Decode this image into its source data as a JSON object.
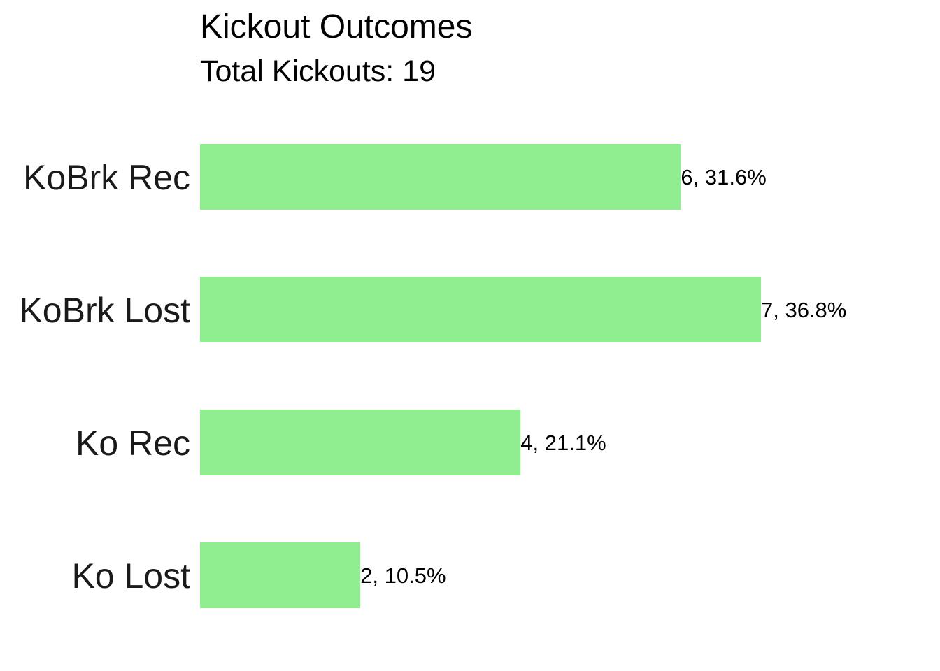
{
  "chart_data": {
    "type": "bar",
    "orientation": "horizontal",
    "title": "Kickout Outcomes",
    "subtitle": "Total Kickouts: 19",
    "categories": [
      "KoBrk Rec",
      "KoBrk Lost",
      "Ko Rec",
      "Ko Lost"
    ],
    "values": [
      6,
      7,
      4,
      2
    ],
    "data_labels": [
      "6, 31.6%",
      "7, 36.8%",
      "4, 21.1%",
      "2, 10.5%"
    ],
    "xlim": [
      0,
      7
    ],
    "grid": false,
    "axes_visible": false,
    "bar_color": "#90EE90"
  }
}
